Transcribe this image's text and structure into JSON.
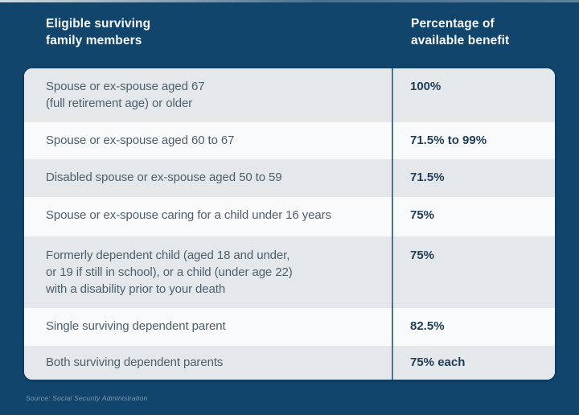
{
  "colors": {
    "background_navy": "#12456B",
    "row_gray": "#E4E8EB",
    "row_white": "#F8FAFB",
    "column_divider": "#4E7294",
    "header_text": "#F5F9FB",
    "label_text": "#4E5F6C",
    "value_text": "#1F3D57",
    "source_text": "#8099AC"
  },
  "header": {
    "col1": "Eligible surviving\nfamily members",
    "col2": "Percentage of\navailable benefit"
  },
  "table": {
    "rows": [
      {
        "label": "Spouse or ex-spouse aged 67\n(full retirement age) or older",
        "value": "100%"
      },
      {
        "label": "Spouse or ex-spouse aged 60 to 67",
        "value": "71.5% to 99%"
      },
      {
        "label": "Disabled spouse or ex-spouse aged 50 to 59",
        "value": "71.5%"
      },
      {
        "label": "Spouse or ex-spouse caring for a child under 16 years",
        "value": "75%"
      },
      {
        "label": "Formerly dependent child (aged 18 and under,\nor 19 if still in school), or a child (under age 22)\nwith a disability prior to your death",
        "value": "75%"
      },
      {
        "label": "Single surviving dependent parent",
        "value": "82.5%"
      },
      {
        "label": "Both surviving dependent parents",
        "value": "75% each"
      }
    ]
  },
  "source": "Source: Social Security Administration",
  "chart_data": {
    "type": "table",
    "title": "",
    "columns": [
      "Eligible surviving family members",
      "Percentage of available benefit"
    ],
    "rows": [
      [
        "Spouse or ex-spouse aged 67 (full retirement age) or older",
        "100%"
      ],
      [
        "Spouse or ex-spouse aged 60 to 67",
        "71.5% to 99%"
      ],
      [
        "Disabled spouse or ex-spouse aged 50 to 59",
        "71.5%"
      ],
      [
        "Spouse or ex-spouse caring for a child under 16 years",
        "75%"
      ],
      [
        "Formerly dependent child (aged 18 and under, or 19 if still in school), or a child (under age 22) with a disability prior to your death",
        "75%"
      ],
      [
        "Single surviving dependent parent",
        "82.5%"
      ],
      [
        "Both surviving dependent parents",
        "75% each"
      ]
    ],
    "source": "Source: Social Security Administration"
  }
}
